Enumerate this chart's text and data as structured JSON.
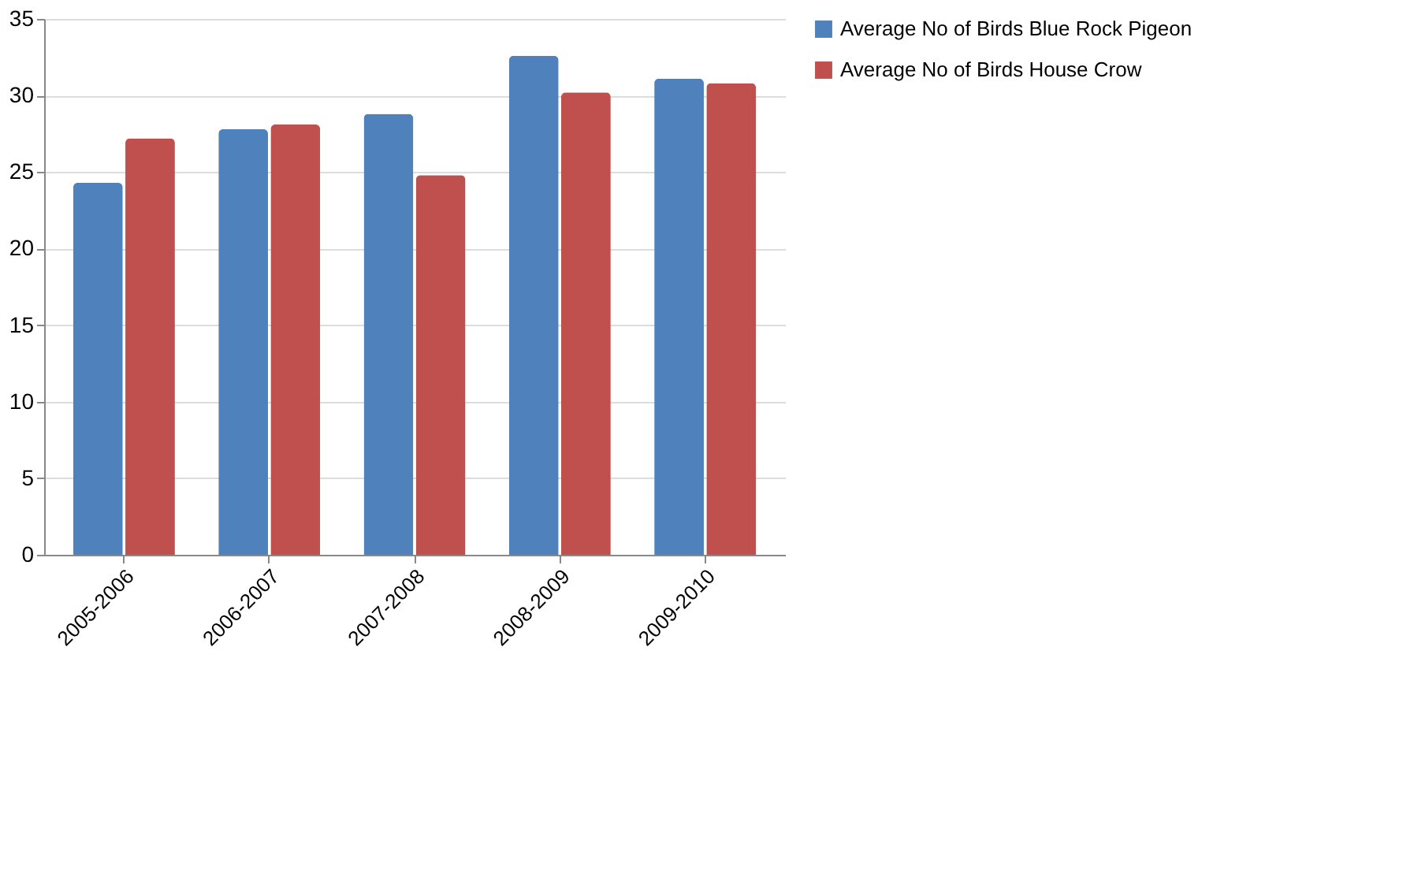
{
  "chart_data": {
    "type": "bar",
    "categories": [
      "2005-2006",
      "2006-2007",
      "2007-2008",
      "2008-2009",
      "2009-2010"
    ],
    "series": [
      {
        "name": "Average No of Birds Blue Rock Pigeon",
        "color": "#4f81bd",
        "values": [
          24.3,
          27.8,
          28.8,
          32.6,
          31.1
        ]
      },
      {
        "name": "Average No of Birds House Crow",
        "color": "#c0504d",
        "values": [
          27.2,
          28.1,
          24.8,
          30.2,
          30.8
        ]
      }
    ],
    "ylim": [
      0,
      35
    ],
    "yticks": [
      0,
      5,
      10,
      15,
      20,
      25,
      30,
      35
    ],
    "grid": "y",
    "legend": "right"
  }
}
